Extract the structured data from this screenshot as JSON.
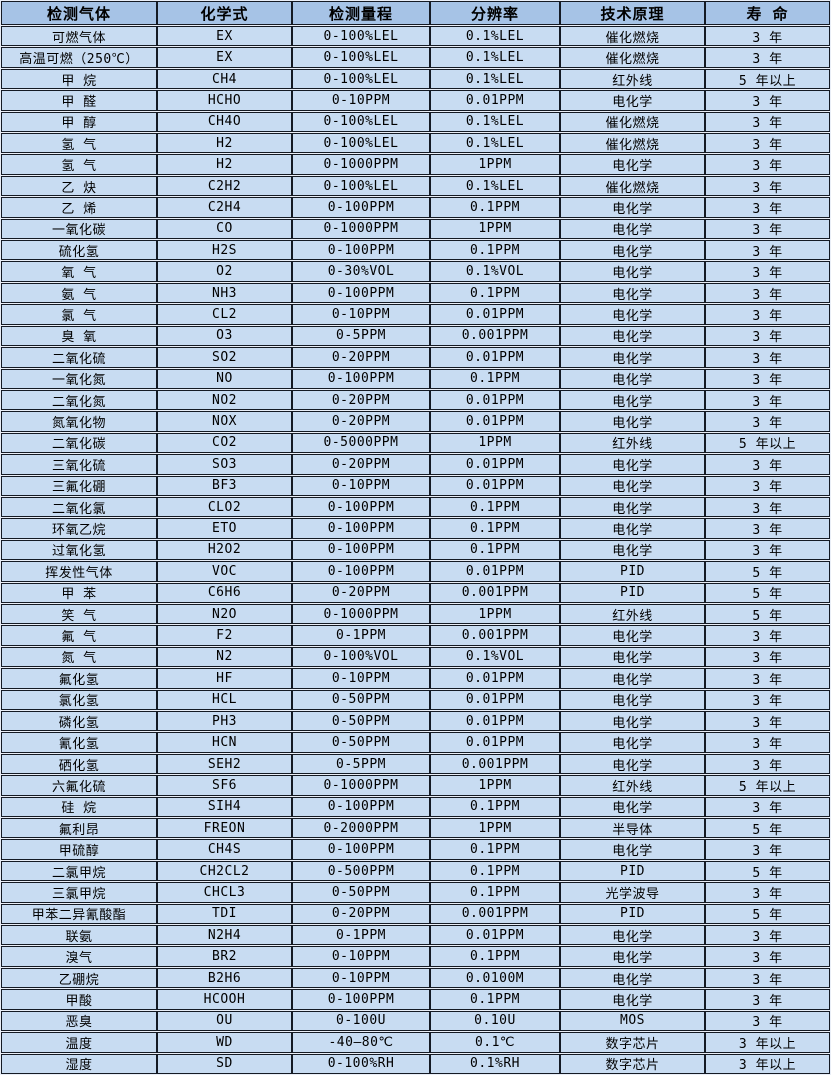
{
  "colors": {
    "header_bg": "#a6c3e6",
    "row_bg": "#c8dcf2",
    "border": "#141a24",
    "gap": "#e9eef7"
  },
  "table": {
    "headers": [
      "检测气体",
      "化学式",
      "检测量程",
      "分辨率",
      "技术原理",
      "寿 命"
    ],
    "rows": [
      [
        "可燃气体",
        "EX",
        "0-100%LEL",
        "0.1%LEL",
        "催化燃烧",
        "3 年"
      ],
      [
        "高温可燃（250℃）",
        "EX",
        "0-100%LEL",
        "0.1%LEL",
        "催化燃烧",
        "3 年"
      ],
      [
        "甲 烷",
        "CH4",
        "0-100%LEL",
        "0.1%LEL",
        "红外线",
        "5 年以上"
      ],
      [
        "甲 醛",
        "HCHO",
        "0-10PPM",
        "0.01PPM",
        "电化学",
        "3 年"
      ],
      [
        "甲 醇",
        "CH4O",
        "0-100%LEL",
        "0.1%LEL",
        "催化燃烧",
        "3 年"
      ],
      [
        "氢 气",
        "H2",
        "0-100%LEL",
        "0.1%LEL",
        "催化燃烧",
        "3 年"
      ],
      [
        "氢 气",
        "H2",
        "0-1000PPM",
        "1PPM",
        "电化学",
        "3 年"
      ],
      [
        "乙 炔",
        "C2H2",
        "0-100%LEL",
        "0.1%LEL",
        "催化燃烧",
        "3 年"
      ],
      [
        "乙 烯",
        "C2H4",
        "0-100PPM",
        "0.1PPM",
        "电化学",
        "3 年"
      ],
      [
        "一氧化碳",
        "CO",
        "0-1000PPM",
        "1PPM",
        "电化学",
        "3 年"
      ],
      [
        "硫化氢",
        "H2S",
        "0-100PPM",
        "0.1PPM",
        "电化学",
        "3 年"
      ],
      [
        "氧 气",
        "O2",
        "0-30%VOL",
        "0.1%VOL",
        "电化学",
        "3 年"
      ],
      [
        "氨 气",
        "NH3",
        "0-100PPM",
        "0.1PPM",
        "电化学",
        "3 年"
      ],
      [
        "氯 气",
        "CL2",
        "0-10PPM",
        "0.01PPM",
        "电化学",
        "3 年"
      ],
      [
        "臭 氧",
        "O3",
        "0-5PPM",
        "0.001PPM",
        "电化学",
        "3 年"
      ],
      [
        "二氧化硫",
        "SO2",
        "0-20PPM",
        "0.01PPM",
        "电化学",
        "3 年"
      ],
      [
        "一氧化氮",
        "NO",
        "0-100PPM",
        "0.1PPM",
        "电化学",
        "3 年"
      ],
      [
        "二氧化氮",
        "NO2",
        "0-20PPM",
        "0.01PPM",
        "电化学",
        "3 年"
      ],
      [
        "氮氧化物",
        "NOX",
        "0-20PPM",
        "0.01PPM",
        "电化学",
        "3 年"
      ],
      [
        "二氧化碳",
        "CO2",
        "0-5000PPM",
        "1PPM",
        "红外线",
        "5 年以上"
      ],
      [
        "三氧化硫",
        "SO3",
        "0-20PPM",
        "0.01PPM",
        "电化学",
        "3 年"
      ],
      [
        "三氟化硼",
        "BF3",
        "0-10PPM",
        "0.01PPM",
        "电化学",
        "3 年"
      ],
      [
        "二氧化氯",
        "CLO2",
        "0-100PPM",
        "0.1PPM",
        "电化学",
        "3 年"
      ],
      [
        "环氧乙烷",
        "ETO",
        "0-100PPM",
        "0.1PPM",
        "电化学",
        "3 年"
      ],
      [
        "过氧化氢",
        "H2O2",
        "0-100PPM",
        "0.1PPM",
        "电化学",
        "3 年"
      ],
      [
        "挥发性气体",
        "VOC",
        "0-100PPM",
        "0.01PPM",
        "PID",
        "5 年"
      ],
      [
        "甲 苯",
        "C6H6",
        "0-20PPM",
        "0.001PPM",
        "PID",
        "5 年"
      ],
      [
        "笑 气",
        "N2O",
        "0-1000PPM",
        "1PPM",
        "红外线",
        "5 年"
      ],
      [
        "氟 气",
        "F2",
        "0-1PPM",
        "0.001PPM",
        "电化学",
        "3 年"
      ],
      [
        "氮 气",
        "N2",
        "0-100%VOL",
        "0.1%VOL",
        "电化学",
        "3 年"
      ],
      [
        "氟化氢",
        "HF",
        "0-10PPM",
        "0.01PPM",
        "电化学",
        "3 年"
      ],
      [
        "氯化氢",
        "HCL",
        "0-50PPM",
        "0.01PPM",
        "电化学",
        "3 年"
      ],
      [
        "磷化氢",
        "PH3",
        "0-50PPM",
        "0.01PPM",
        "电化学",
        "3 年"
      ],
      [
        "氰化氢",
        "HCN",
        "0-50PPM",
        "0.01PPM",
        "电化学",
        "3 年"
      ],
      [
        "硒化氢",
        "SEH2",
        "0-5PPM",
        "0.001PPM",
        "电化学",
        "3 年"
      ],
      [
        "六氟化硫",
        "SF6",
        "0-1000PPM",
        "1PPM",
        "红外线",
        "5 年以上"
      ],
      [
        "硅 烷",
        "SIH4",
        "0-100PPM",
        "0.1PPM",
        "电化学",
        "3 年"
      ],
      [
        "氟利昂",
        "FREON",
        "0-2000PPM",
        "1PPM",
        "半导体",
        "5 年"
      ],
      [
        "甲硫醇",
        "CH4S",
        "0-100PPM",
        "0.1PPM",
        "电化学",
        "3 年"
      ],
      [
        "二氯甲烷",
        "CH2CL2",
        "0-500PPM",
        "0.1PPM",
        "PID",
        "5 年"
      ],
      [
        "三氯甲烷",
        "CHCL3",
        "0-50PPM",
        "0.1PPM",
        "光学波导",
        "3 年"
      ],
      [
        "甲苯二异氰酸酯",
        "TDI",
        "0-20PPM",
        "0.001PPM",
        "PID",
        "5 年"
      ],
      [
        "联氨",
        "N2H4",
        "0-1PPM",
        "0.01PPM",
        "电化学",
        "3 年"
      ],
      [
        "溴气",
        "BR2",
        "0-10PPM",
        "0.1PPM",
        "电化学",
        "3 年"
      ],
      [
        "乙硼烷",
        "B2H6",
        "0-10PPM",
        "0.0100M",
        "电化学",
        "3 年"
      ],
      [
        "甲酸",
        "HCOOH",
        "0-100PPM",
        "0.1PPM",
        "电化学",
        "3 年"
      ],
      [
        "恶臭",
        "OU",
        "0-100U",
        "0.10U",
        "MOS",
        "3 年"
      ],
      [
        "温度",
        "WD",
        "-40—80℃",
        "0.1℃",
        "数字芯片",
        "3 年以上"
      ],
      [
        "湿度",
        "SD",
        "0-100%RH",
        "0.1%RH",
        "数字芯片",
        "3 年以上"
      ]
    ]
  }
}
